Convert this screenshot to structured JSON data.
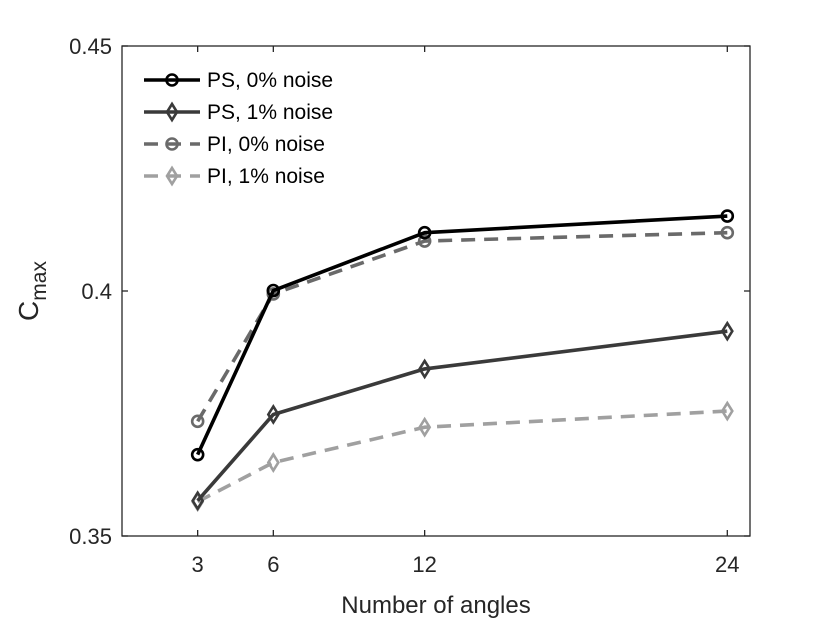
{
  "chart_data": {
    "type": "line",
    "xlabel": "Number of angles",
    "ylabel_main": "C",
    "ylabel_sub": "max",
    "xlim": [
      0,
      24.9
    ],
    "ylim": [
      0.35,
      0.45
    ],
    "x_ticks": [
      3,
      6,
      12,
      24
    ],
    "x_tick_labels": [
      "3",
      "6",
      "12",
      "24"
    ],
    "y_ticks": [
      0.35,
      0.4,
      0.45
    ],
    "y_tick_labels": [
      "0.35",
      "0.4",
      "0.45"
    ],
    "grid": false,
    "legend_position": "top-left",
    "x": [
      3,
      6,
      12,
      24
    ],
    "series": [
      {
        "name": "PS, 0% noise",
        "values": [
          0.3666,
          0.4001,
          0.4119,
          0.4153
        ],
        "color": "#000000",
        "dash": "solid",
        "marker": "circle"
      },
      {
        "name": "PS, 1% noise",
        "values": [
          0.3572,
          0.3748,
          0.3841,
          0.3918
        ],
        "color": "#3a3a3a",
        "dash": "solid",
        "marker": "diamond"
      },
      {
        "name": "PI, 0% noise",
        "values": [
          0.3734,
          0.3994,
          0.4102,
          0.4119
        ],
        "color": "#6a6a6a",
        "dash": "dashed",
        "marker": "circle"
      },
      {
        "name": "PI, 1% noise",
        "values": [
          0.357,
          0.365,
          0.3722,
          0.3755
        ],
        "color": "#a0a0a0",
        "dash": "dashed",
        "marker": "diamond"
      }
    ]
  }
}
